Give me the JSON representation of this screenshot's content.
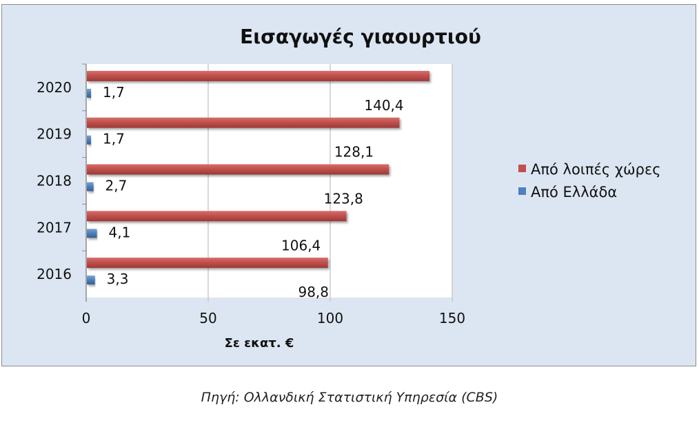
{
  "chart_data": {
    "type": "bar",
    "orientation": "horizontal",
    "title": "Εισαγωγές γιαουρτιού",
    "xlabel": "Σε εκατ. €",
    "ylabel": "",
    "categories": [
      "2020",
      "2019",
      "2018",
      "2017",
      "2016"
    ],
    "series": [
      {
        "name": "Από λοιπές χώρες",
        "color": "#c0504d",
        "values": [
          140.4,
          128.1,
          123.8,
          106.4,
          98.8
        ],
        "labels": [
          "140,4",
          "128,1",
          "123,8",
          "106,4",
          "98,8"
        ]
      },
      {
        "name": "Από Ελλάδα",
        "color": "#4f81bd",
        "values": [
          1.7,
          1.7,
          2.7,
          4.1,
          3.3
        ],
        "labels": [
          "1,7",
          "1,7",
          "2,7",
          "4,1",
          "3,3"
        ]
      }
    ],
    "xlim": [
      0,
      150
    ],
    "xticks": [
      0,
      50,
      100,
      150
    ],
    "grid": true,
    "legend_position": "right",
    "plot_background": "#ffffff",
    "frame_background": "#dce6f2"
  },
  "source": "Πηγή: Ολλανδική Στατιστική Υπηρεσία (CBS)"
}
